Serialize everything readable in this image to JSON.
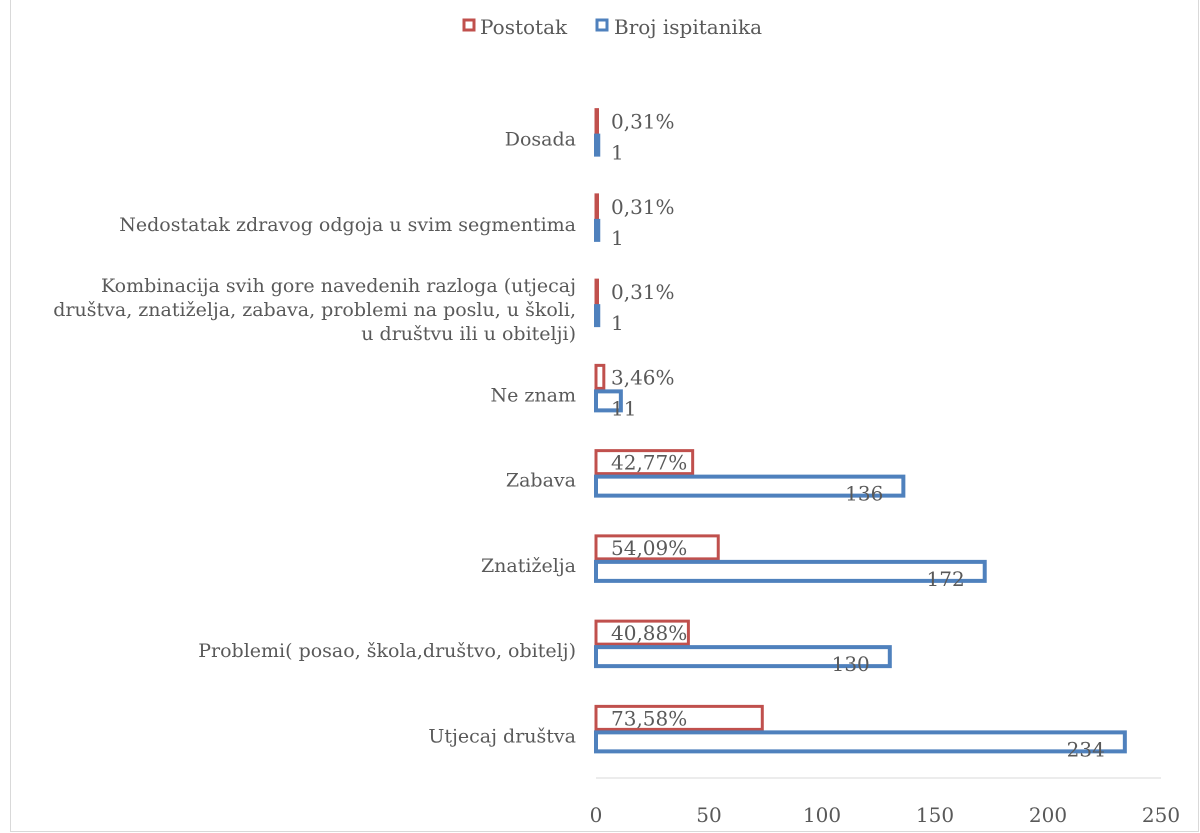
{
  "chart_data": {
    "type": "bar",
    "orientation": "horizontal",
    "title": "",
    "xlabel": "",
    "ylabel": "",
    "xlim": [
      0,
      250
    ],
    "x_ticks": [
      "0",
      "50",
      "100",
      "150",
      "200",
      "250"
    ],
    "grid": false,
    "legend_position": "top",
    "categories": [
      "Dosada",
      "Nedostatak zdravog odgoja u svim segmentima",
      "Kombinacija svih gore navedenih razloga (utjecaj društva, znatiželja, zabava, problemi na poslu, u školi, u društvu ili u obitelji)",
      "Ne znam",
      "Zabava",
      "Znatiželja",
      "Problemi( posao, škola,društvo, obitelj)",
      "Utjecaj društva"
    ],
    "category_lines": [
      [
        "Dosada"
      ],
      [
        "Nedostatak zdravog odgoja u svim segmentima"
      ],
      [
        "Kombinacija svih gore navedenih razloga (utjecaj",
        "društva, znatiželja, zabava, problemi na poslu, u školi,",
        "u društvu ili u obitelji)"
      ],
      [
        "Ne znam"
      ],
      [
        "Zabava"
      ],
      [
        "Znatiželja"
      ],
      [
        "Problemi( posao, škola,društvo, obitelj)"
      ],
      [
        "Utjecaj društva"
      ]
    ],
    "series": [
      {
        "name": "Postotak",
        "color": "#c0504d",
        "values": [
          0.31,
          0.31,
          0.31,
          3.46,
          42.77,
          54.09,
          40.88,
          73.58
        ],
        "labels": [
          "0,31%",
          "0,31%",
          "0,31%",
          "3,46%",
          "42,77%",
          "54,09%",
          "40,88%",
          "73,58%"
        ]
      },
      {
        "name": "Broj ispitanika",
        "color": "#4f81bd",
        "values": [
          1,
          1,
          1,
          11,
          136,
          172,
          130,
          234
        ],
        "labels": [
          "1",
          "1",
          "1",
          "11",
          "136",
          "172",
          "130",
          "234"
        ]
      }
    ]
  }
}
